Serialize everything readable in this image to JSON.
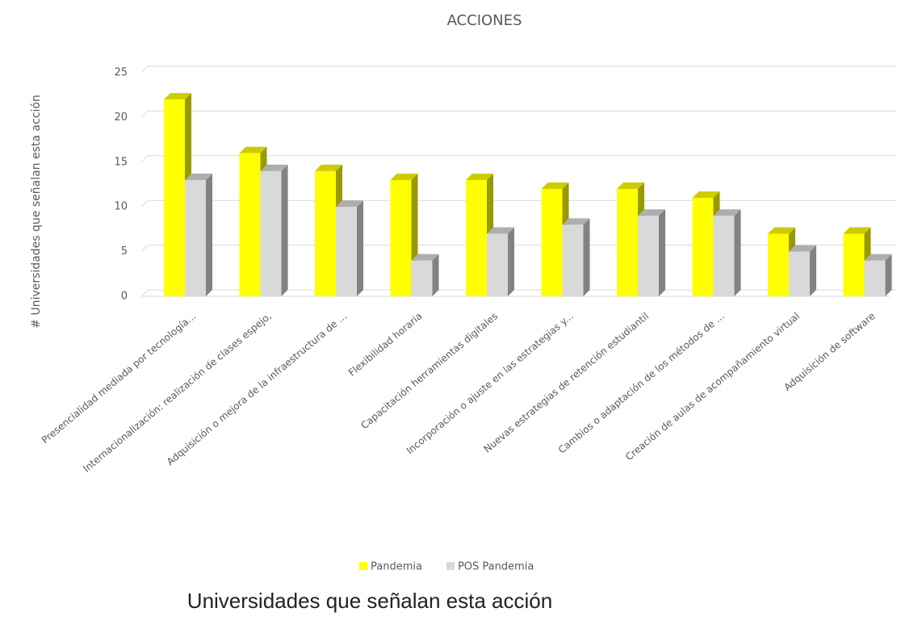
{
  "chart_data": {
    "type": "bar3d",
    "title": "ACCIONES",
    "y_label": "# Universidades que señalan esta acción",
    "caption": "Universidades que señalan esta acción",
    "categories": [
      "Presencialidad mediada por tecnología...",
      "Internacionalización: realización de clases espejo,",
      "Adquisición o mejora de la infraestructura de ...",
      "Flexibilidad horaria",
      "Capacitación herramientas digitales",
      "Incorporación o ajuste en las estrategias y...",
      "Nuevas estrategias de retención estudiantil",
      "Cambios o adaptación de los métodos de ...",
      "Creación de aulas de acompañamiento virtual",
      "Adquisición de software"
    ],
    "series": [
      {
        "name": "Pandemia",
        "color": "#ffff00",
        "values": [
          22,
          16,
          14,
          13,
          13,
          12,
          12,
          11,
          7,
          7
        ]
      },
      {
        "name": "POS Pandemia",
        "color": "#d9d9d9",
        "values": [
          13,
          14,
          10,
          4,
          7,
          8,
          9,
          9,
          5,
          4
        ]
      }
    ],
    "ylim": [
      0,
      25
    ],
    "yticks": [
      0,
      5,
      10,
      15,
      20,
      25
    ],
    "grid": true,
    "legend": "bottom"
  }
}
